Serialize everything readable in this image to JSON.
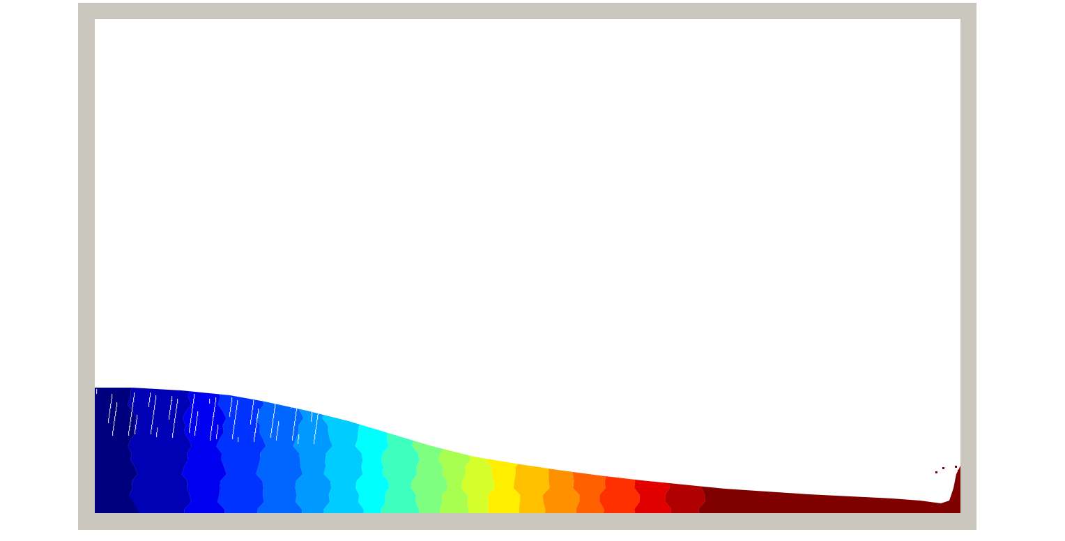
{
  "scene": {
    "description_kind": "fluid-simulation-render",
    "colors": {
      "page_background": "#ffffff",
      "tank_wall": "#c8c6bd",
      "tank_interior": "#ffffff"
    },
    "colormap": [
      "#00007f",
      "#0000b4",
      "#0000f0",
      "#0033ff",
      "#0066ff",
      "#0099ff",
      "#00ccff",
      "#00ffff",
      "#3fffbf",
      "#7fff7f",
      "#a8ff4f",
      "#d4ff2a",
      "#ffee00",
      "#ffc000",
      "#ff9000",
      "#ff6000",
      "#ff3000",
      "#e00000",
      "#b00000",
      "#800000"
    ]
  }
}
